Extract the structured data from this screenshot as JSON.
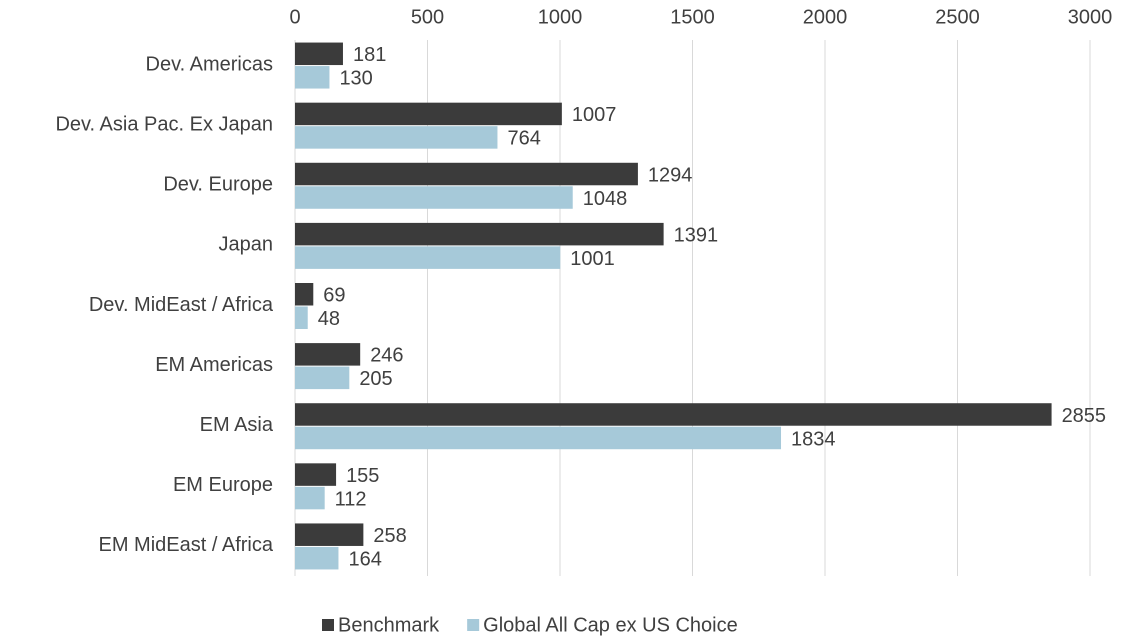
{
  "chart_data": {
    "type": "bar",
    "orientation": "horizontal",
    "categories": [
      "Dev. Americas",
      "Dev. Asia Pac. Ex Japan",
      "Dev. Europe",
      "Japan",
      "Dev. MidEast / Africa",
      "EM Americas",
      "EM Asia",
      "EM Europe",
      "EM MidEast / Africa"
    ],
    "series": [
      {
        "name": "Benchmark",
        "color": "#3b3b3b",
        "values": [
          181,
          1007,
          1294,
          1391,
          69,
          246,
          2855,
          155,
          258
        ]
      },
      {
        "name": "Global All Cap ex US Choice",
        "color": "#a6c9d9",
        "values": [
          130,
          764,
          1048,
          1001,
          48,
          205,
          1834,
          112,
          164
        ]
      }
    ],
    "xlim": [
      0,
      3000
    ],
    "xticks": [
      0,
      500,
      1000,
      1500,
      2000,
      2500,
      3000
    ],
    "grid": true,
    "legend": "bottom"
  }
}
